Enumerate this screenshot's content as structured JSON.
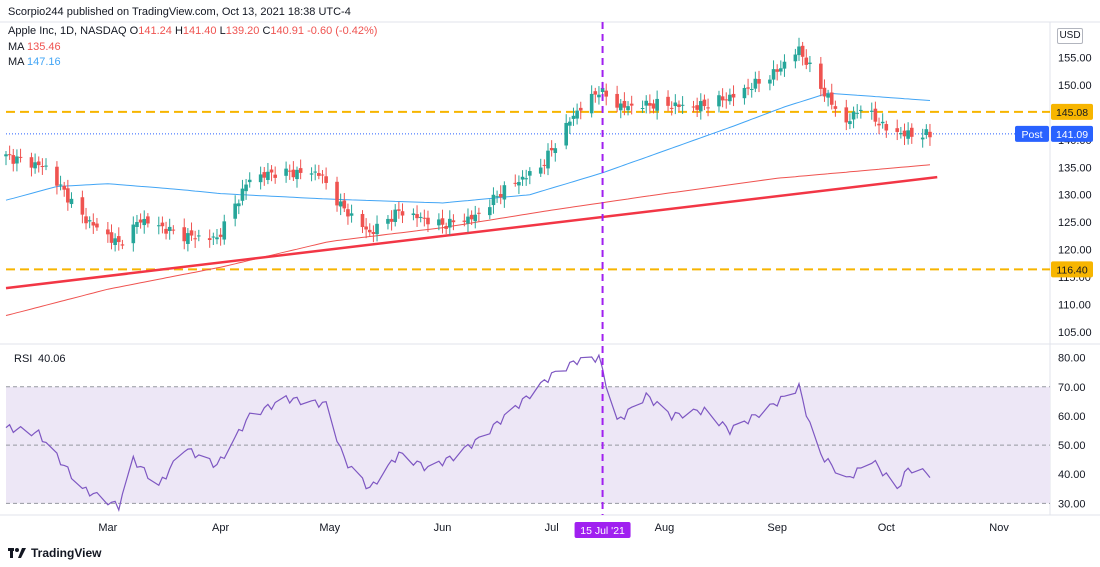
{
  "header": {
    "published": "Scorpio244 published on TradingView.com, Oct 13, 2021 18:38 UTC-4",
    "symbol": "Apple Inc, 1D, NASDAQ",
    "ohlc": [
      {
        "k": "O",
        "v": "141.24"
      },
      {
        "k": "H",
        "v": "141.40"
      },
      {
        "k": "L",
        "v": "139.20"
      },
      {
        "k": "C",
        "v": "140.91"
      }
    ],
    "change": "-0.60 (-0.42%)",
    "ma1_label": "MA",
    "ma1_value": "135.46",
    "ma2_label": "MA",
    "ma2_value": "147.16"
  },
  "currency": "USD",
  "footer_brand": "TradingView",
  "colors": {
    "up": "#26a69a",
    "down": "#ef5350",
    "ma_fast": "#42a5f5",
    "ma_slow": "#ef5350",
    "trend": "#f23645",
    "level": "#f7b500",
    "vline": "#a020f0",
    "rsi": "#7e57c2",
    "rsi_band": "#ede7f6",
    "post": "#2962ff"
  },
  "chart_data": [
    {
      "type": "candlestick",
      "title": "Apple Inc, 1D, NASDAQ",
      "y_range": [
        103,
        160
      ],
      "y_ticks": [
        "155.00",
        "150.00",
        "145.00",
        "140.00",
        "135.00",
        "130.00",
        "125.00",
        "120.00",
        "115.00",
        "110.00",
        "105.00"
      ],
      "x_ticks": [
        "Mar",
        "Apr",
        "May",
        "Jun",
        "Jul",
        "Aug",
        "Sep",
        "Oct",
        "Nov"
      ],
      "date_range": [
        "2021-02-01",
        "2021-11-15"
      ],
      "highlight_date": {
        "date": "2021-07-15",
        "label": "15 Jul '21"
      },
      "horizontal_levels": [
        {
          "value": 145.08,
          "label": "145.08"
        },
        {
          "value": 116.4,
          "label": "116.40"
        }
      ],
      "post_price": {
        "label": "Post",
        "value": "141.09"
      },
      "trendline": {
        "from": {
          "date": "2021-02-01",
          "value": 113.0
        },
        "to": {
          "date": "2021-10-15",
          "value": 133.2
        }
      },
      "ma_fast_keypoints": [
        [
          "2021-02-01",
          108.0
        ],
        [
          "2021-03-01",
          112.8
        ],
        [
          "2021-04-01",
          116.8
        ],
        [
          "2021-05-01",
          121.5
        ],
        [
          "2021-06-01",
          124.0
        ],
        [
          "2021-07-01",
          127.2
        ],
        [
          "2021-08-01",
          130.2
        ],
        [
          "2021-09-01",
          133.0
        ],
        [
          "2021-10-13",
          135.46
        ]
      ],
      "ma_slow_keypoints": [
        [
          "2021-02-01",
          129.0
        ],
        [
          "2021-02-15",
          131.5
        ],
        [
          "2021-03-01",
          132.0
        ],
        [
          "2021-03-20",
          131.0
        ],
        [
          "2021-04-01",
          130.2
        ],
        [
          "2021-05-01",
          129.2
        ],
        [
          "2021-06-01",
          128.5
        ],
        [
          "2021-06-25",
          130.0
        ],
        [
          "2021-07-15",
          134.0
        ],
        [
          "2021-08-01",
          138.0
        ],
        [
          "2021-08-20",
          142.5
        ],
        [
          "2021-09-03",
          146.0
        ],
        [
          "2021-09-15",
          148.5
        ],
        [
          "2021-10-13",
          147.16
        ]
      ],
      "candles_keypoints": [
        [
          "2021-02-01",
          137.0
        ],
        [
          "2021-02-12",
          135.0
        ],
        [
          "2021-02-22",
          126.0
        ],
        [
          "2021-03-04",
          121.0
        ],
        [
          "2021-03-10",
          125.5
        ],
        [
          "2021-03-22",
          122.5
        ],
        [
          "2021-03-31",
          122.0
        ],
        [
          "2021-04-09",
          133.0
        ],
        [
          "2021-04-16",
          134.0
        ],
        [
          "2021-04-28",
          134.0
        ],
        [
          "2021-05-04",
          128.0
        ],
        [
          "2021-05-12",
          123.0
        ],
        [
          "2021-05-20",
          127.0
        ],
        [
          "2021-06-01",
          124.5
        ],
        [
          "2021-06-10",
          126.0
        ],
        [
          "2021-06-18",
          131.0
        ],
        [
          "2021-06-28",
          135.0
        ],
        [
          "2021-07-07",
          144.5
        ],
        [
          "2021-07-14",
          149.0
        ],
        [
          "2021-07-20",
          146.0
        ],
        [
          "2021-07-30",
          146.5
        ],
        [
          "2021-08-10",
          146.0
        ],
        [
          "2021-08-20",
          148.0
        ],
        [
          "2021-08-31",
          152.0
        ],
        [
          "2021-09-07",
          156.5
        ],
        [
          "2021-09-14",
          148.5
        ],
        [
          "2021-09-20",
          143.0
        ],
        [
          "2021-09-24",
          146.0
        ],
        [
          "2021-10-01",
          142.0
        ],
        [
          "2021-10-06",
          141.0
        ],
        [
          "2021-10-13",
          140.91
        ]
      ]
    },
    {
      "type": "line",
      "title": "RSI",
      "value_label": "40.06",
      "y_range": [
        26,
        84
      ],
      "y_ticks": [
        "80.00",
        "70.00",
        "60.00",
        "50.00",
        "40.00",
        "30.00"
      ],
      "band": [
        30,
        70
      ],
      "midline": 50,
      "keypoints": [
        [
          "2021-02-01",
          56
        ],
        [
          "2021-02-10",
          54
        ],
        [
          "2021-02-22",
          35
        ],
        [
          "2021-03-04",
          29
        ],
        [
          "2021-03-08",
          45
        ],
        [
          "2021-03-15",
          36
        ],
        [
          "2021-03-22",
          49
        ],
        [
          "2021-03-31",
          43
        ],
        [
          "2021-04-09",
          60
        ],
        [
          "2021-04-19",
          66
        ],
        [
          "2021-04-30",
          64
        ],
        [
          "2021-05-05",
          45
        ],
        [
          "2021-05-12",
          35
        ],
        [
          "2021-05-20",
          47
        ],
        [
          "2021-05-28",
          42
        ],
        [
          "2021-06-04",
          46
        ],
        [
          "2021-06-11",
          52
        ],
        [
          "2021-06-22",
          64
        ],
        [
          "2021-07-01",
          74
        ],
        [
          "2021-07-08",
          79
        ],
        [
          "2021-07-14",
          80
        ],
        [
          "2021-07-19",
          58
        ],
        [
          "2021-07-27",
          67
        ],
        [
          "2021-08-03",
          60
        ],
        [
          "2021-08-12",
          62
        ],
        [
          "2021-08-19",
          55
        ],
        [
          "2021-08-30",
          63
        ],
        [
          "2021-09-07",
          70
        ],
        [
          "2021-09-12",
          48
        ],
        [
          "2021-09-20",
          38
        ],
        [
          "2021-09-27",
          45
        ],
        [
          "2021-10-04",
          35
        ],
        [
          "2021-10-07",
          42
        ],
        [
          "2021-10-13",
          40.06
        ]
      ]
    }
  ]
}
